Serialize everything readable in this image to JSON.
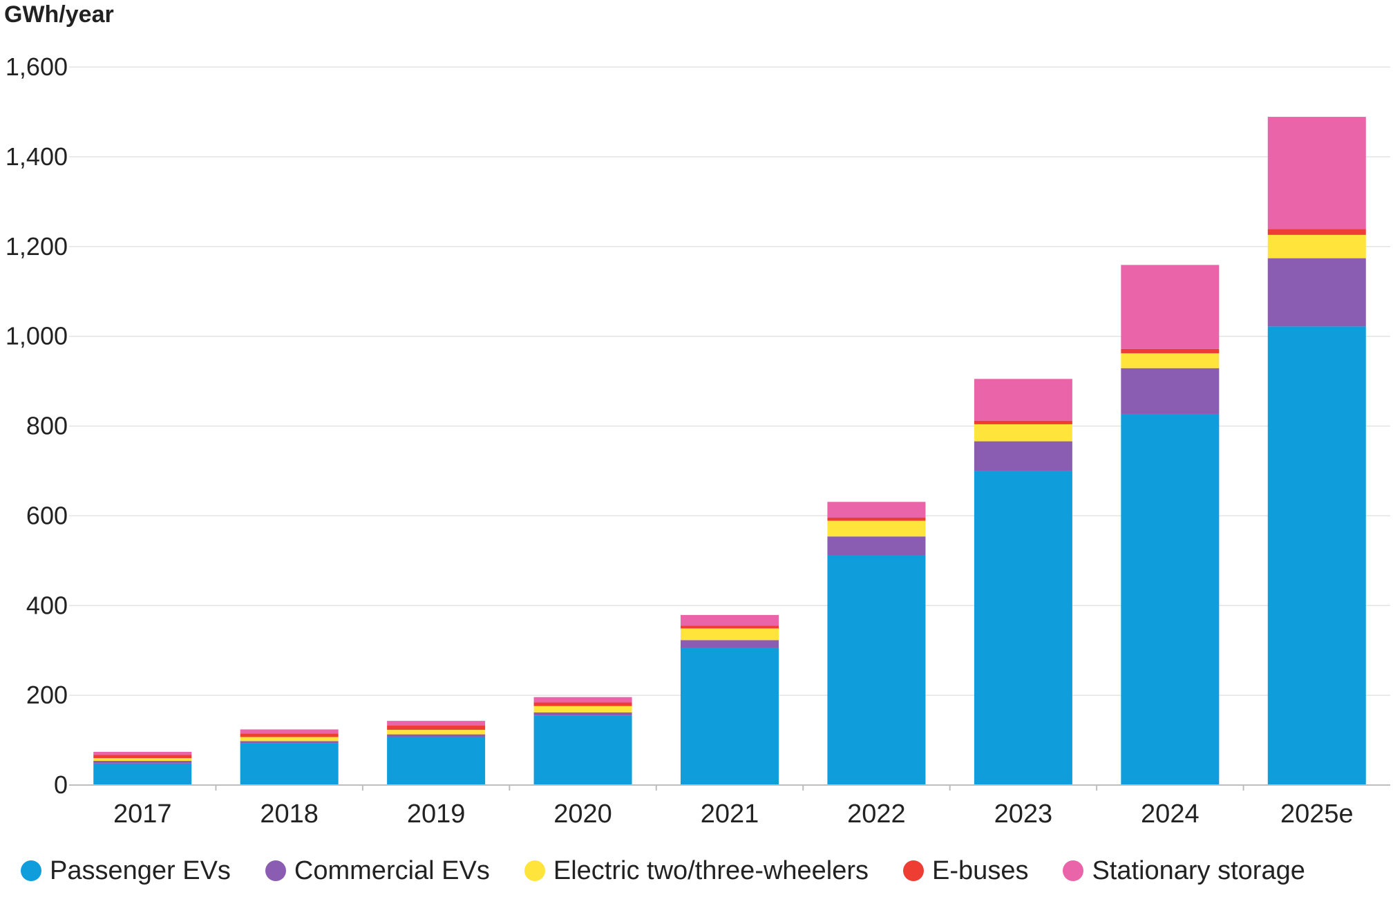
{
  "chart_data": {
    "type": "bar",
    "stacked": true,
    "ylabel": "GWh/year",
    "xlabel": "",
    "ylim": [
      0,
      1600
    ],
    "yticks": [
      0,
      200,
      400,
      600,
      800,
      1000,
      1200,
      1400,
      1600
    ],
    "ytick_labels": [
      "0",
      "200",
      "400",
      "600",
      "800",
      "1,000",
      "1,200",
      "1,400",
      "1,600"
    ],
    "grid": true,
    "legend_position": "bottom",
    "categories": [
      "2017",
      "2018",
      "2019",
      "2020",
      "2021",
      "2022",
      "2023",
      "2024",
      "2025e"
    ],
    "series": [
      {
        "name": "Passenger EVs",
        "color": "#0f9edb",
        "values": [
          48,
          93,
          107,
          155,
          305,
          512,
          700,
          827,
          1022
        ]
      },
      {
        "name": "Commercial EVs",
        "color": "#8a5cb2",
        "values": [
          6,
          5,
          6,
          7,
          18,
          42,
          66,
          102,
          152
        ]
      },
      {
        "name": "Electric two/three-wheelers",
        "color": "#ffe53b",
        "values": [
          6,
          9,
          10,
          14,
          26,
          35,
          38,
          33,
          52
        ]
      },
      {
        "name": "E-buses",
        "color": "#ee3e34",
        "values": [
          7,
          8,
          10,
          8,
          6,
          7,
          8,
          10,
          13
        ]
      },
      {
        "name": "Stationary storage",
        "color": "#e964a8",
        "values": [
          7,
          9,
          10,
          12,
          24,
          35,
          93,
          187,
          250
        ]
      }
    ]
  }
}
